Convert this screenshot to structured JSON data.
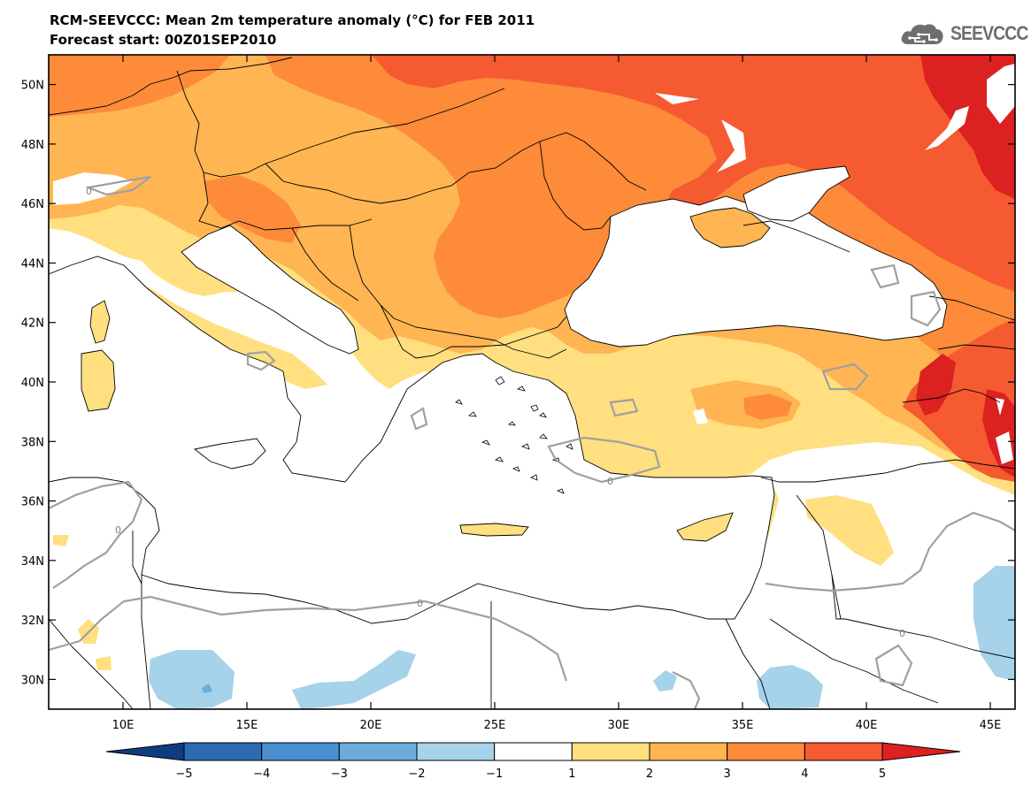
{
  "header": {
    "title": "RCM-SEEVCCC: Mean 2m temperature anomaly (°C) for FEB 2011",
    "subtitle": "Forecast start: 00Z01SEP2010"
  },
  "logo": {
    "text": "SEEVCCC",
    "icon": "cloud-icon",
    "color": "#6e6e6e"
  },
  "map": {
    "projection": "lat-lon",
    "lon_range": [
      7,
      46
    ],
    "lat_range": [
      29,
      51
    ],
    "lat_ticks": [
      {
        "value": 50,
        "label": "50N"
      },
      {
        "value": 48,
        "label": "48N"
      },
      {
        "value": 46,
        "label": "46N"
      },
      {
        "value": 44,
        "label": "44N"
      },
      {
        "value": 42,
        "label": "42N"
      },
      {
        "value": 40,
        "label": "40N"
      },
      {
        "value": 38,
        "label": "38N"
      },
      {
        "value": 36,
        "label": "36N"
      },
      {
        "value": 34,
        "label": "34N"
      },
      {
        "value": 32,
        "label": "32N"
      },
      {
        "value": 30,
        "label": "30N"
      }
    ],
    "lon_ticks": [
      {
        "value": 10,
        "label": "10E"
      },
      {
        "value": 15,
        "label": "15E"
      },
      {
        "value": 20,
        "label": "20E"
      },
      {
        "value": 25,
        "label": "25E"
      },
      {
        "value": 30,
        "label": "30E"
      },
      {
        "value": 35,
        "label": "35E"
      },
      {
        "value": 40,
        "label": "40E"
      },
      {
        "value": 45,
        "label": "45E"
      }
    ],
    "contour_label": "0",
    "colors": {
      "a12": "#ffdf80",
      "a23": "#ffb552",
      "a34": "#fd8b3a",
      "a45": "#f55a30",
      "a5p": "#dc2121",
      "n12": "#a6d2ea",
      "n23": "#6eaddb",
      "zero_contour": "#a0a0a0",
      "borders": "#000000"
    }
  },
  "colorbar": {
    "colors": [
      "#0d3d80",
      "#2b6cb0",
      "#4a90d0",
      "#6eaddb",
      "#a6d2ea",
      "#ffffff",
      "#ffdf80",
      "#ffb552",
      "#fd8b3a",
      "#f55a30",
      "#dc2121"
    ],
    "labels": [
      "−5",
      "−4",
      "−3",
      "−2",
      "−1",
      "1",
      "2",
      "3",
      "4",
      "5"
    ]
  }
}
